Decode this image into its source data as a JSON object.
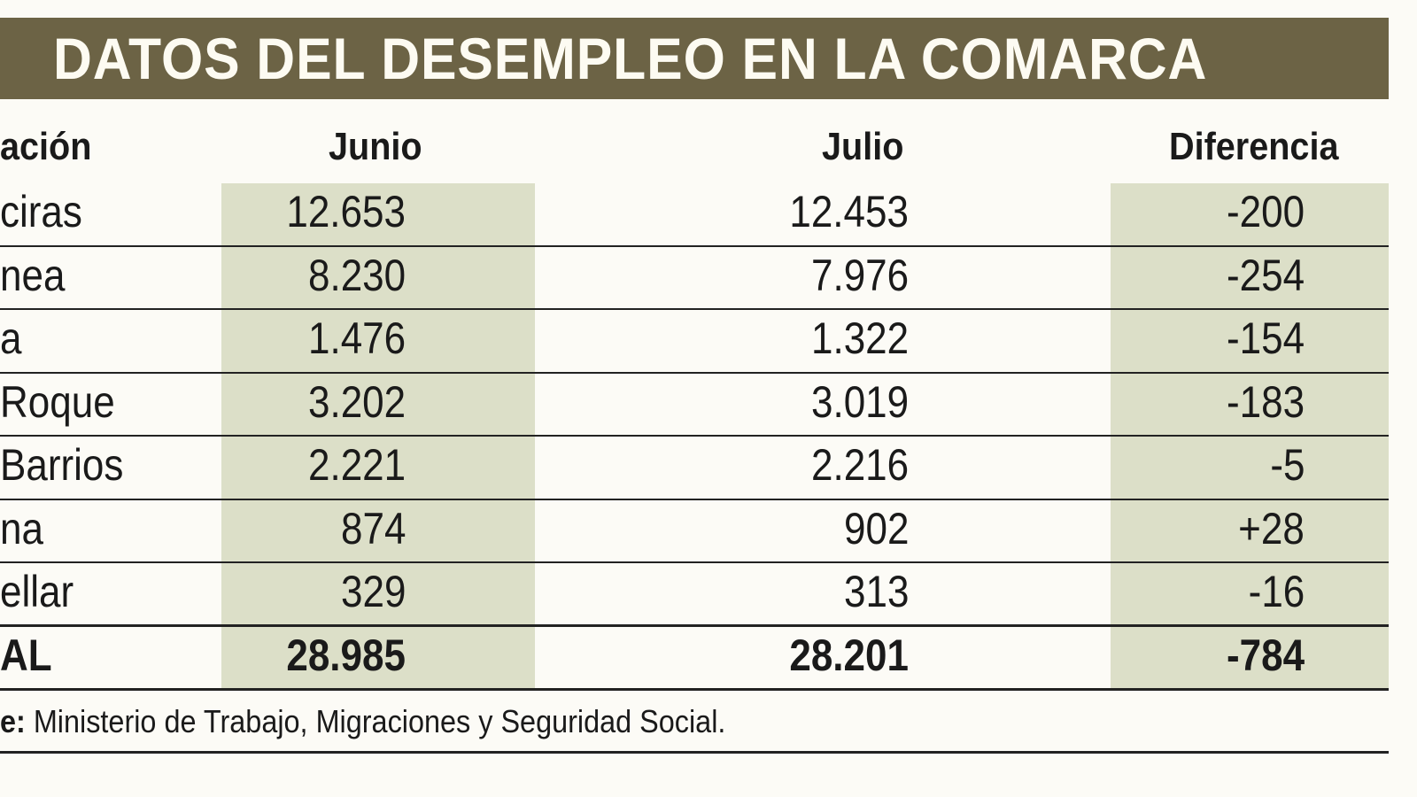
{
  "title": "DATOS DEL DESEMPLEO EN LA COMARCA",
  "colors": {
    "banner": "#6c6345",
    "shade": "#dcdfc8"
  },
  "headers": [
    "ación",
    "Junio",
    "Julio",
    "Diferencia"
  ],
  "rows": [
    {
      "name": "ciras",
      "junio": "12.653",
      "julio": "12.453",
      "diferencia": "-200"
    },
    {
      "name": "nea",
      "junio": "8.230",
      "julio": "7.976",
      "diferencia": "-254"
    },
    {
      "name": "a",
      "junio": "1.476",
      "julio": "1.322",
      "diferencia": "-154"
    },
    {
      "name": "Roque",
      "junio": "3.202",
      "julio": "3.019",
      "diferencia": "-183"
    },
    {
      "name": "Barrios",
      "junio": "2.221",
      "julio": "2.216",
      "diferencia": "-5"
    },
    {
      "name": "na",
      "junio": "874",
      "julio": "902",
      "diferencia": "+28"
    },
    {
      "name": "ellar",
      "junio": "329",
      "julio": "313",
      "diferencia": "-16"
    }
  ],
  "total": {
    "name": "AL",
    "junio": "28.985",
    "julio": "28.201",
    "diferencia": "-784"
  },
  "source": {
    "label": "e:",
    "text": " Ministerio de Trabajo, Migraciones y Seguridad Social."
  }
}
